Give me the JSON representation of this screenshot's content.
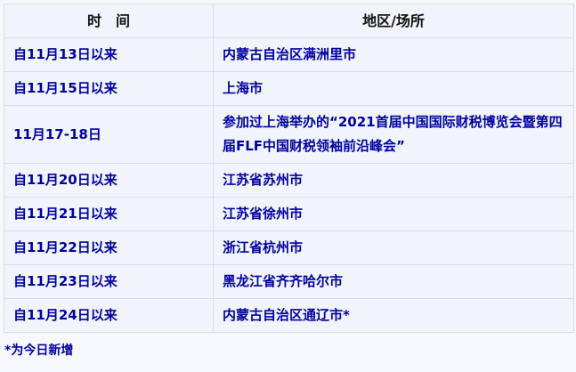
{
  "table": {
    "headers": {
      "time_label": "时　间",
      "place_label": "地区/场所"
    },
    "rows": [
      {
        "time": "自11月13日以来",
        "place": "内蒙古自治区满洲里市"
      },
      {
        "time": "自11月15日以来",
        "place": "上海市"
      },
      {
        "time": "11月17-18日",
        "place": "参加过上海举办的“2021首届中国国际财税博览会暨第四届FLF中国财税领袖前沿峰会”"
      },
      {
        "time": "自11月20日以来",
        "place": "江苏省苏州市"
      },
      {
        "time": "自11月21日以来",
        "place": "江苏省徐州市"
      },
      {
        "time": "自11月22日以来",
        "place": "浙江省杭州市"
      },
      {
        "time": "自11月23日以来",
        "place": "黑龙江省齐齐哈尔市"
      },
      {
        "time": "自11月24日以来",
        "place": "内蒙古自治区通辽市*"
      }
    ]
  },
  "footer": {
    "note": "*为今日新增"
  },
  "colors": {
    "page_background": "#f6f8fc",
    "cell_background": "#f1f5fb",
    "border": "#dadce0",
    "header_text": "#111111",
    "cell_text": "#0000a0"
  }
}
